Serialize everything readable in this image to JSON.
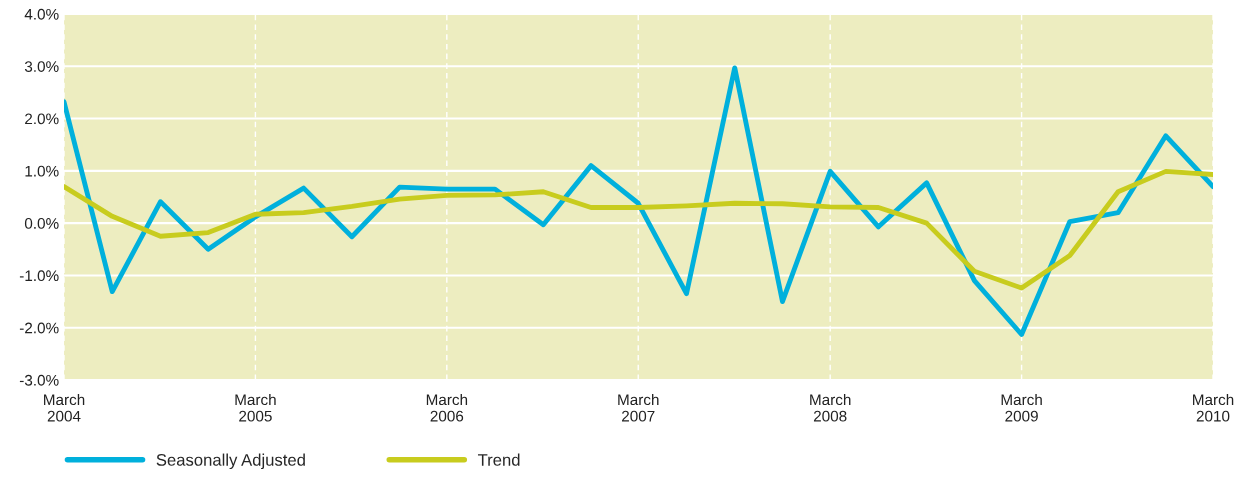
{
  "chart_data": {
    "type": "line",
    "x": [
      "2004-03",
      "2004-06",
      "2004-09",
      "2004-12",
      "2005-03",
      "2005-06",
      "2005-09",
      "2005-12",
      "2006-03",
      "2006-06",
      "2006-09",
      "2006-12",
      "2007-03",
      "2007-06",
      "2007-09",
      "2007-12",
      "2008-03",
      "2008-06",
      "2008-09",
      "2008-12",
      "2009-03",
      "2009-06",
      "2009-09",
      "2009-12",
      "2010-03"
    ],
    "series": [
      {
        "name": "Seasonally Adjusted",
        "color": "#00b0dc",
        "values": [
          2.32,
          -1.31,
          0.41,
          -0.5,
          0.12,
          0.67,
          -0.26,
          0.69,
          0.65,
          0.65,
          -0.03,
          1.1,
          0.38,
          -1.35,
          2.97,
          -1.5,
          0.99,
          -0.07,
          0.77,
          -1.1,
          -2.13,
          0.03,
          0.2,
          1.67,
          0.7
        ]
      },
      {
        "name": "Trend",
        "color": "#c8cc1e",
        "values": [
          0.7,
          0.13,
          -0.25,
          -0.18,
          0.17,
          0.2,
          0.32,
          0.46,
          0.53,
          0.54,
          0.6,
          0.3,
          0.3,
          0.33,
          0.38,
          0.37,
          0.31,
          0.3,
          0.0,
          -0.92,
          -1.24,
          -0.62,
          0.6,
          0.99,
          0.93
        ]
      }
    ],
    "xlim": [
      "2004-03",
      "2010-03"
    ],
    "xticks": [
      {
        "value": "2004-03",
        "label": "March\n2004"
      },
      {
        "value": "2005-03",
        "label": "March\n2005"
      },
      {
        "value": "2006-03",
        "label": "March\n2006"
      },
      {
        "value": "2007-03",
        "label": "March\n2007"
      },
      {
        "value": "2008-03",
        "label": "March\n2008"
      },
      {
        "value": "2009-03",
        "label": "March\n2009"
      },
      {
        "value": "2010-03",
        "label": "March\n2010"
      }
    ],
    "ylim": [
      -3.0,
      4.0
    ],
    "yticks": [
      {
        "value": -3.0,
        "label": "-3.0%"
      },
      {
        "value": -2.0,
        "label": "-2.0%"
      },
      {
        "value": -1.0,
        "label": "-1.0%"
      },
      {
        "value": 0.0,
        "label": "0.0%"
      },
      {
        "value": 1.0,
        "label": "1.0%"
      },
      {
        "value": 2.0,
        "label": "2.0%"
      },
      {
        "value": 3.0,
        "label": "3.0%"
      },
      {
        "value": 4.0,
        "label": "4.0%"
      }
    ],
    "grid": true,
    "legend": "bottom left",
    "marker": "none",
    "line_style": "solid"
  }
}
